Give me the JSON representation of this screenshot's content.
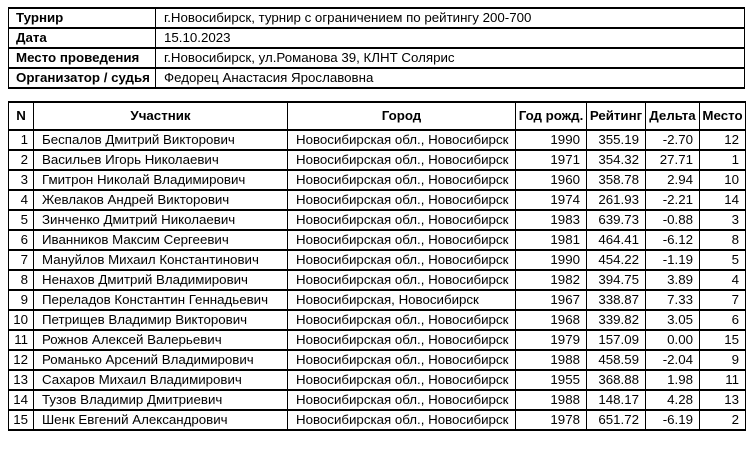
{
  "info_table": {
    "rows": [
      {
        "label": "Турнир",
        "value": "г.Новосибирск, турнир с ограничением по рейтингу 200-700"
      },
      {
        "label": "Дата",
        "value": "15.10.2023"
      },
      {
        "label": "Место проведения",
        "value": "г.Новосибирск, ул.Романова 39, КЛНТ Солярис"
      },
      {
        "label": "Организатор / судья",
        "value": "Федорец Анастасия Ярославовна"
      }
    ]
  },
  "results_table": {
    "headers": [
      "N",
      "Участник",
      "Город",
      "Год рожд.",
      "Рейтинг",
      "Дельта",
      "Место"
    ],
    "rows": [
      [
        "1",
        "Беспалов Дмитрий Викторович",
        "Новосибирская обл., Новосибирск",
        "1990",
        "355.19",
        "-2.70",
        "12"
      ],
      [
        "2",
        "Васильев Игорь Николаевич",
        "Новосибирская обл., Новосибирск",
        "1971",
        "354.32",
        "27.71",
        "1"
      ],
      [
        "3",
        "Гмитрон Николай Владимирович",
        "Новосибирская обл., Новосибирск",
        "1960",
        "358.78",
        "2.94",
        "10"
      ],
      [
        "4",
        "Жевлаков Андрей Викторович",
        "Новосибирская обл., Новосибирск",
        "1974",
        "261.93",
        "-2.21",
        "14"
      ],
      [
        "5",
        "Зинченко Дмитрий Николаевич",
        "Новосибирская обл., Новосибирск",
        "1983",
        "639.73",
        "-0.88",
        "3"
      ],
      [
        "6",
        "Иванников Максим Сергеевич",
        "Новосибирская обл., Новосибирск",
        "1981",
        "464.41",
        "-6.12",
        "8"
      ],
      [
        "7",
        "Мануйлов Михаил Константинович",
        "Новосибирская обл., Новосибирск",
        "1990",
        "454.22",
        "-1.19",
        "5"
      ],
      [
        "8",
        "Ненахов Дмитрий Владимирович",
        "Новосибирская обл., Новосибирск",
        "1982",
        "394.75",
        "3.89",
        "4"
      ],
      [
        "9",
        "Переладов Константин Геннадьевич",
        "Новосибирская, Новосибирск",
        "1967",
        "338.87",
        "7.33",
        "7"
      ],
      [
        "10",
        "Петрищев Владимир Викторович",
        "Новосибирская обл., Новосибирск",
        "1968",
        "339.82",
        "3.05",
        "6"
      ],
      [
        "11",
        "Рожнов Алексей Валерьевич",
        "Новосибирская обл., Новосибирск",
        "1979",
        "157.09",
        "0.00",
        "15"
      ],
      [
        "12",
        "Романько Арсений Владимирович",
        "Новосибирская обл., Новосибирск",
        "1988",
        "458.59",
        "-2.04",
        "9"
      ],
      [
        "13",
        "Сахаров Михаил Владимирович",
        "Новосибирская обл., Новосибирск",
        "1955",
        "368.88",
        "1.98",
        "11"
      ],
      [
        "14",
        "Тузов Владимир Дмитриевич",
        "Новосибирская обл., Новосибирск",
        "1988",
        "148.17",
        "4.28",
        "13"
      ],
      [
        "15",
        "Шенк Евгений Александрович",
        "Новосибирская обл., Новосибирск",
        "1978",
        "651.72",
        "-6.19",
        "2"
      ]
    ]
  }
}
